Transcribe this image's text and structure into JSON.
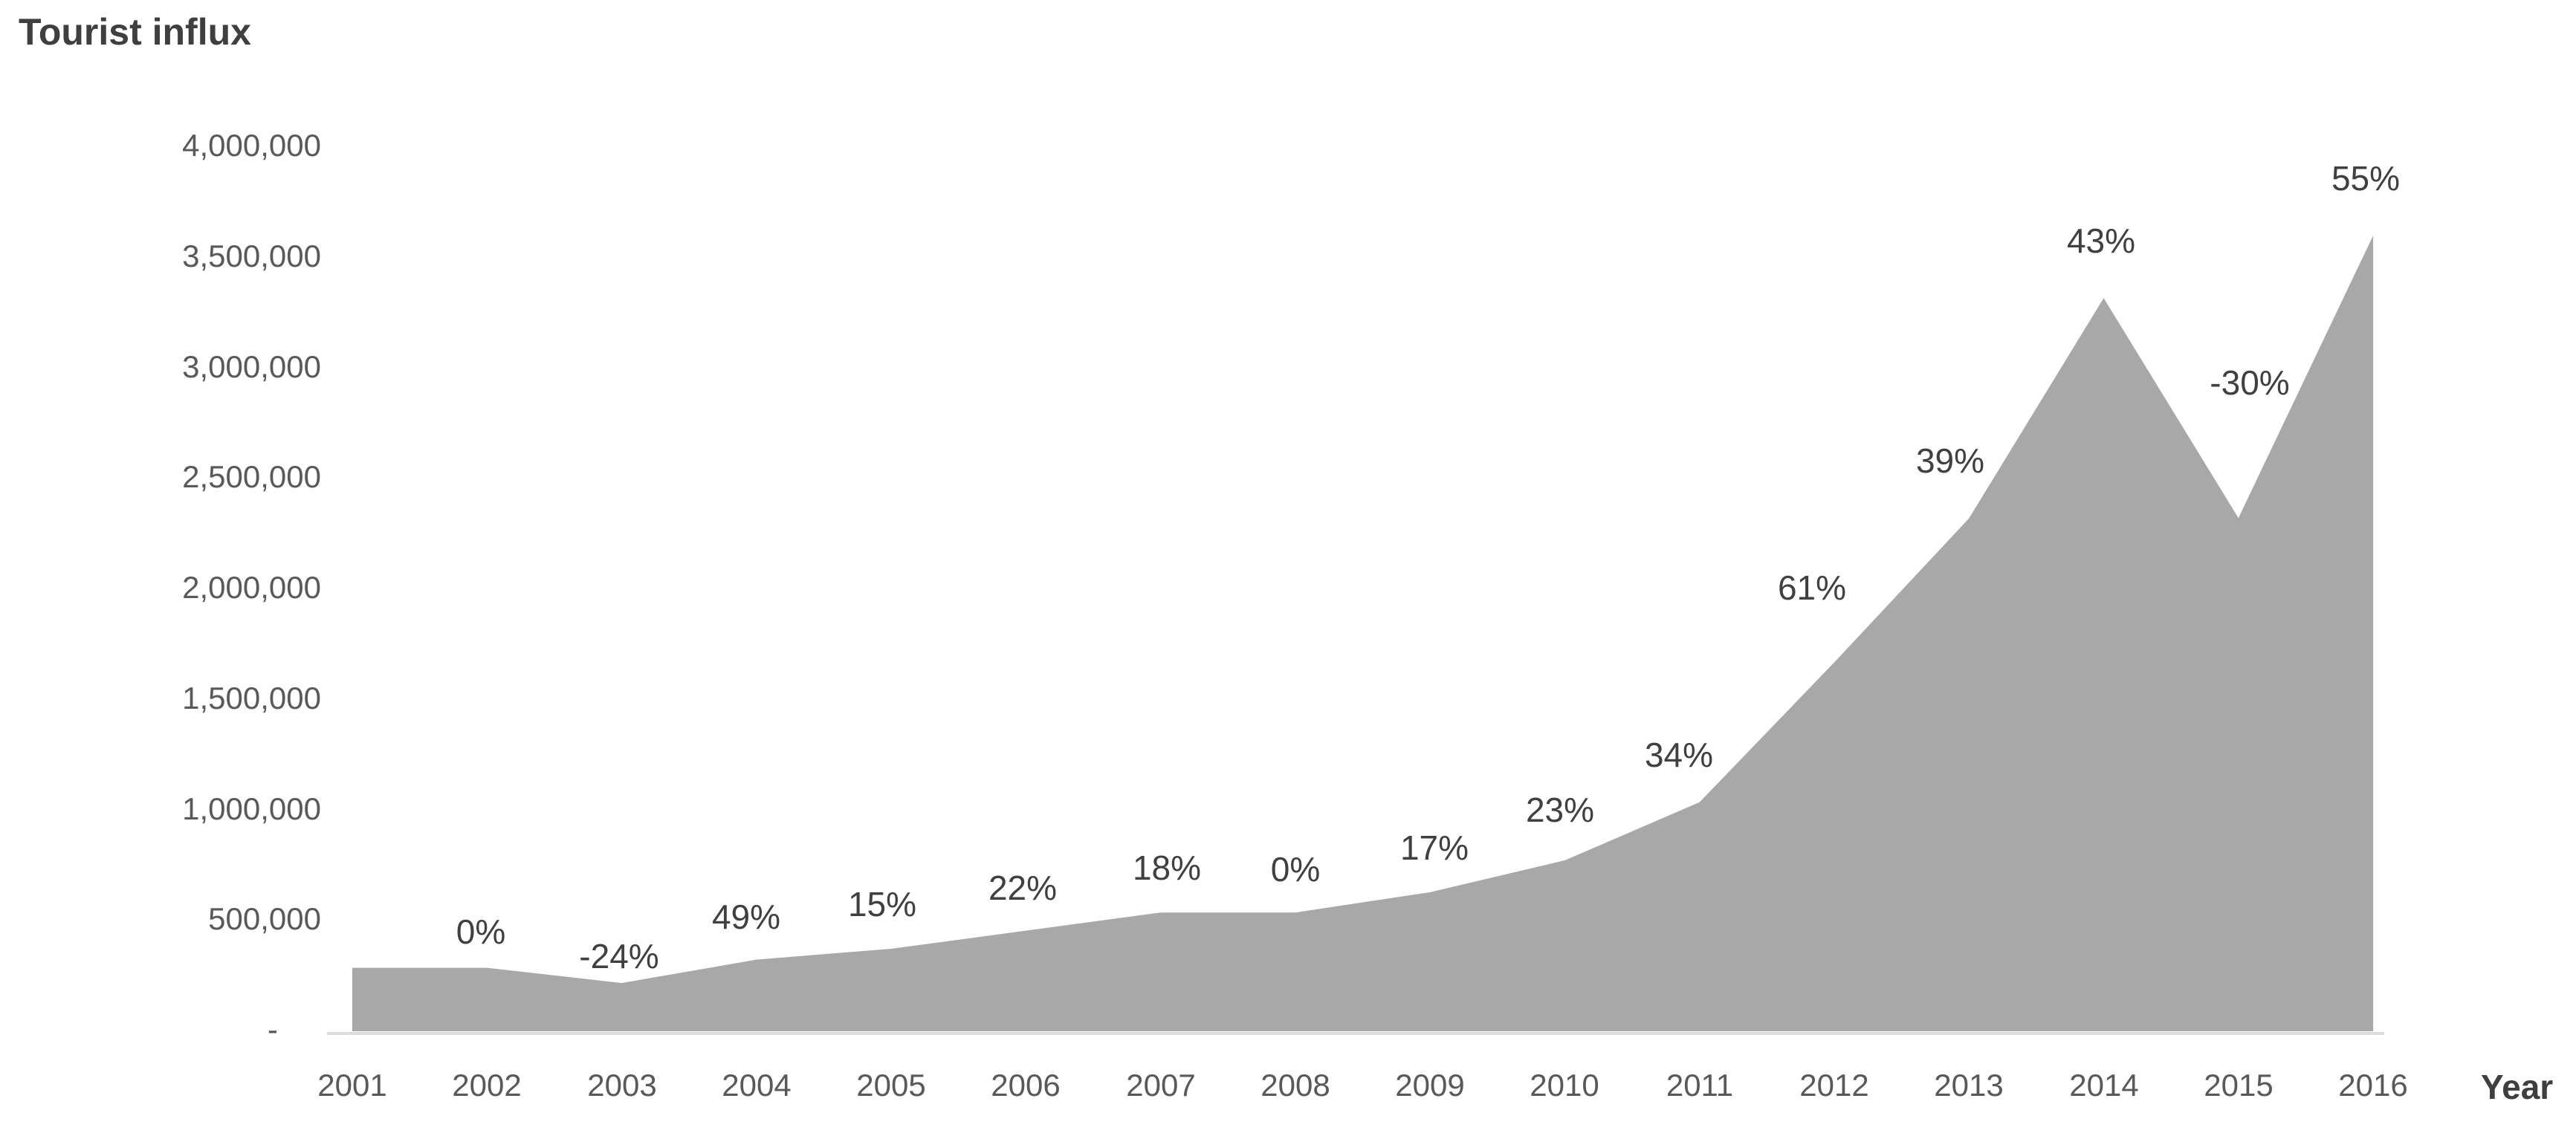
{
  "chart": {
    "title": "Tourist influx",
    "x_axis_title": "Year",
    "colors": {
      "area": "#a8a8a8",
      "axis_line": "#dcdcdc",
      "title_text": "#3f3f3f",
      "tick_text": "#595959",
      "label_text": "#404040"
    }
  },
  "chart_data": {
    "type": "area",
    "title": "Tourist influx",
    "xlabel": "Year",
    "ylabel": "Tourist influx",
    "categories": [
      "2001",
      "2002",
      "2003",
      "2004",
      "2005",
      "2006",
      "2007",
      "2008",
      "2009",
      "2010",
      "2011",
      "2012",
      "2013",
      "2014",
      "2015",
      "2016"
    ],
    "values": [
      287000,
      287000,
      218000,
      324000,
      373000,
      455000,
      537000,
      537000,
      629000,
      773000,
      1036000,
      1669000,
      2320000,
      3317000,
      2322000,
      3600000
    ],
    "point_labels": [
      "",
      "0%",
      "-24%",
      "49%",
      "15%",
      "22%",
      "18%",
      "0%",
      "17%",
      "23%",
      "34%",
      "61%",
      "39%",
      "43%",
      "-30%",
      "55%"
    ],
    "ylim": [
      0,
      4000000
    ],
    "y_tick_interval": 500000,
    "y_tick_labels": [
      "-",
      "500,000",
      "1,000,000",
      "1,500,000",
      "2,000,000",
      "2,500,000",
      "3,000,000",
      "3,500,000",
      "4,000,000"
    ],
    "grid": false,
    "legend": "none"
  }
}
